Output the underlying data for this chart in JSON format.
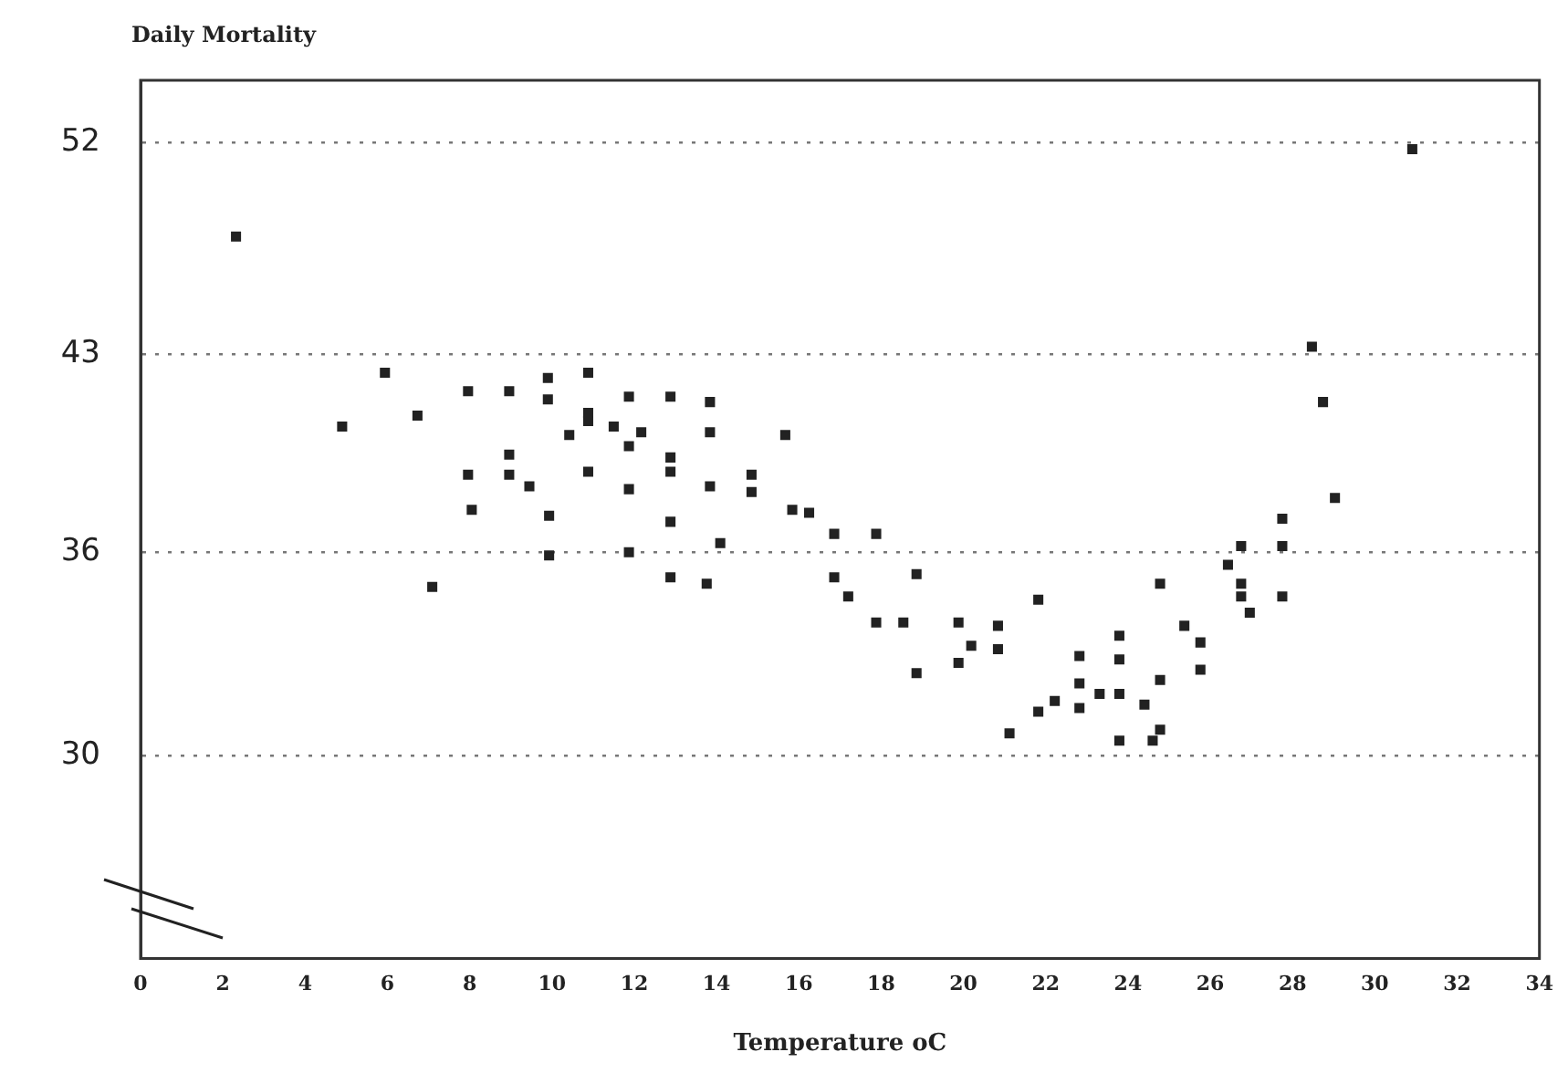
{
  "chart_data": {
    "type": "scatter",
    "xlabel": "Temperature oC",
    "ylabel": "Daily Mortality",
    "xlim": [
      0,
      34
    ],
    "xticks": [
      0,
      2,
      4,
      6,
      8,
      10,
      12,
      14,
      16,
      18,
      20,
      22,
      24,
      26,
      28,
      30,
      32,
      34
    ],
    "ylim": [
      25,
      55
    ],
    "yticks": [
      30,
      36,
      43,
      52
    ],
    "log": "y",
    "grid": "y",
    "line_style": "dotted",
    "marker": "square",
    "series": [
      {
        "color": "#222222",
        "x": [
          2.32,
          5.94,
          4.9,
          6.73,
          7.96,
          8.96,
          9.9,
          9.9,
          10.88,
          10.88,
          10.88,
          10.42,
          11.5,
          11.87,
          12.17,
          11.87,
          12.88,
          12.88,
          12.88,
          13.84,
          13.84,
          15.67,
          14.85,
          14.85,
          13.84,
          11.87,
          10.88,
          7.96,
          8.96,
          8.96,
          9.45,
          8.05,
          9.93,
          12.88,
          15.84,
          16.25,
          9.93,
          11.87,
          14.09,
          12.88,
          13.76,
          7.09,
          16.86,
          17.88,
          16.86,
          17.2,
          18.86,
          17.88,
          18.54,
          18.86,
          19.88,
          19.88,
          20.19,
          20.84,
          20.84,
          21.82,
          21.12,
          21.82,
          22.22,
          22.82,
          22.82,
          22.82,
          23.31,
          23.79,
          23.79,
          23.79,
          23.79,
          24.4,
          24.78,
          24.78,
          24.6,
          24.78,
          25.37,
          25.76,
          25.76,
          26.43,
          26.75,
          26.75,
          26.75,
          26.96,
          27.75,
          27.75,
          27.75,
          29.03,
          30.91,
          28.47,
          28.74
        ],
        "values": [
          47.8,
          42.3,
          40.3,
          40.7,
          41.6,
          41.6,
          42.1,
          41.3,
          42.3,
          40.8,
          40.5,
          40.0,
          40.3,
          41.4,
          40.1,
          39.6,
          41.4,
          39.2,
          38.7,
          41.2,
          40.1,
          40.0,
          38.6,
          38.0,
          38.2,
          38.1,
          38.7,
          38.6,
          39.3,
          38.6,
          38.2,
          37.4,
          37.2,
          37.0,
          37.4,
          37.3,
          35.9,
          36.0,
          36.3,
          35.2,
          35.0,
          34.9,
          36.6,
          36.6,
          35.2,
          34.6,
          35.3,
          33.8,
          33.8,
          32.3,
          33.8,
          32.6,
          33.1,
          33.7,
          33.0,
          34.5,
          30.6,
          31.2,
          31.5,
          32.8,
          32.0,
          31.3,
          31.7,
          33.4,
          32.7,
          31.7,
          30.4,
          31.4,
          32.1,
          30.7,
          30.4,
          35.0,
          33.7,
          33.2,
          32.4,
          35.6,
          36.2,
          35.0,
          34.6,
          34.1,
          37.1,
          36.2,
          34.6,
          37.8,
          51.7,
          43.3,
          41.2
        ]
      }
    ]
  }
}
